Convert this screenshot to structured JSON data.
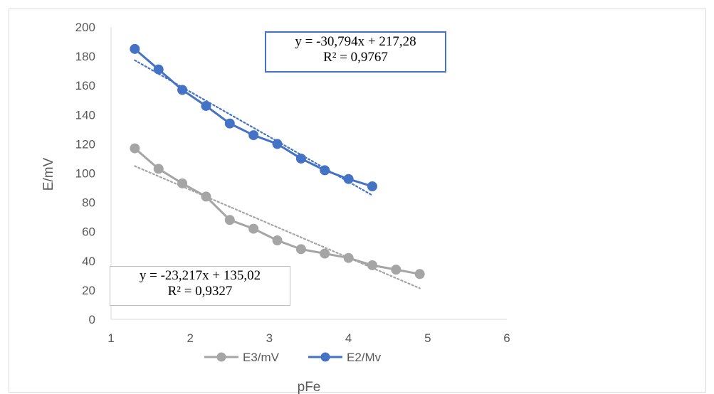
{
  "chart_data": {
    "type": "line",
    "title": "",
    "xlabel": "pFe",
    "ylabel": "E/mV",
    "xlim": [
      1,
      6
    ],
    "ylim": [
      0,
      200
    ],
    "x_ticks": [
      "1",
      "2",
      "3",
      "4",
      "5",
      "6"
    ],
    "y_ticks": [
      "0",
      "20",
      "40",
      "60",
      "80",
      "100",
      "120",
      "140",
      "160",
      "180",
      "200"
    ],
    "grid": false,
    "legend_position": "bottom",
    "series": [
      {
        "name": "E3/mV",
        "color": "#a5a5a5",
        "x": [
          1.3,
          1.6,
          1.9,
          2.2,
          2.5,
          2.8,
          3.1,
          3.4,
          3.7,
          4.0,
          4.3,
          4.6,
          4.9
        ],
        "y": [
          117,
          103,
          93,
          84,
          68,
          62,
          54,
          48,
          45,
          42,
          37,
          34,
          31
        ],
        "trendline": {
          "type": "linear",
          "slope": -23.217,
          "intercept": 135.02,
          "x_range": [
            1.3,
            4.9
          ],
          "style": "dotted"
        },
        "equation": "y = -23,217x + 135,02",
        "r_squared": "R² = 0,9327"
      },
      {
        "name": "E2/Mv",
        "color": "#4472c4",
        "x": [
          1.3,
          1.6,
          1.9,
          2.2,
          2.5,
          2.8,
          3.1,
          3.4,
          3.7,
          4.0,
          4.3
        ],
        "y": [
          185,
          171,
          157,
          146,
          134,
          126,
          120,
          110,
          102,
          96,
          91
        ],
        "trendline": {
          "type": "linear",
          "slope": -30.794,
          "intercept": 217.28,
          "x_range": [
            1.3,
            4.3
          ],
          "style": "dotted"
        },
        "equation": "y = -30,794x + 217,28",
        "r_squared": "R² = 0,9767"
      }
    ]
  }
}
